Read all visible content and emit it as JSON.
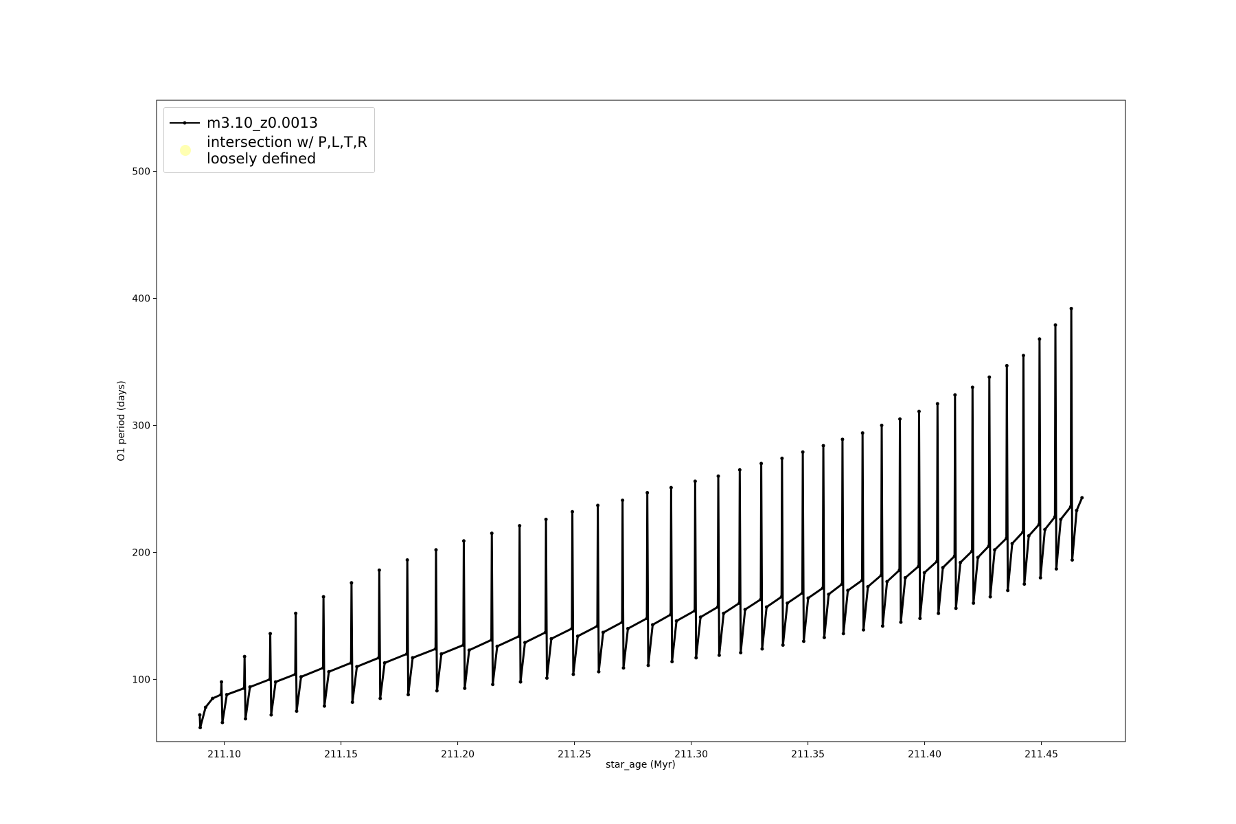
{
  "chart_data": {
    "type": "line",
    "xlabel": "star_age (Myr)",
    "ylabel": "O1 period (days)",
    "xlim": [
      211.071,
      211.486
    ],
    "ylim": [
      51,
      556
    ],
    "xticks": [
      {
        "value": 211.1,
        "label": "211.10"
      },
      211.15,
      {
        "value": 211.2,
        "label": "211.20"
      },
      211.25,
      {
        "value": 211.3,
        "label": "211.30"
      },
      211.35,
      {
        "value": 211.4,
        "label": "211.40"
      },
      211.45
    ],
    "yticks": [
      100,
      200,
      300,
      400,
      500
    ],
    "grid": false,
    "legend": "upper left",
    "series": [
      {
        "name": "m3.10_z0.0013",
        "color": "#000000",
        "marker": "dot",
        "x": [
          211.0895,
          211.0897,
          211.092,
          211.095,
          211.0986,
          211.0988,
          211.0992,
          211.1011,
          211.1085,
          211.1087,
          211.1091,
          211.111,
          211.1195,
          211.1197,
          211.1201,
          211.122,
          211.1304,
          211.1306,
          211.131,
          211.1329,
          211.1423,
          211.1425,
          211.1429,
          211.1448,
          211.1543,
          211.1545,
          211.1549,
          211.1568,
          211.1662,
          211.1664,
          211.1668,
          211.1687,
          211.1782,
          211.1784,
          211.1788,
          211.1807,
          211.1905,
          211.1907,
          211.1911,
          211.193,
          211.2024,
          211.2026,
          211.203,
          211.2049,
          211.2144,
          211.2146,
          211.215,
          211.2169,
          211.2263,
          211.2265,
          211.2269,
          211.2288,
          211.2376,
          211.2378,
          211.2382,
          211.2401,
          211.2489,
          211.2491,
          211.2495,
          211.2514,
          211.2598,
          211.26,
          211.2604,
          211.2623,
          211.2704,
          211.2706,
          211.271,
          211.2729,
          211.281,
          211.2812,
          211.2816,
          211.2835,
          211.2912,
          211.2914,
          211.2918,
          211.2937,
          211.3015,
          211.3017,
          211.3021,
          211.304,
          211.3114,
          211.3116,
          211.312,
          211.3139,
          211.3206,
          211.3208,
          211.3212,
          211.3231,
          211.3298,
          211.33,
          211.3304,
          211.3323,
          211.3387,
          211.3389,
          211.3393,
          211.3412,
          211.3476,
          211.3478,
          211.3482,
          211.3501,
          211.3564,
          211.3566,
          211.357,
          211.3589,
          211.3646,
          211.3648,
          211.3652,
          211.3671,
          211.3732,
          211.3734,
          211.3738,
          211.3757,
          211.3814,
          211.3816,
          211.382,
          211.3839,
          211.3892,
          211.3894,
          211.3898,
          211.3917,
          211.3974,
          211.3976,
          211.398,
          211.3999,
          211.4053,
          211.4055,
          211.4059,
          211.4078,
          211.4128,
          211.413,
          211.4134,
          211.4153,
          211.4203,
          211.4205,
          211.4209,
          211.4228,
          211.4275,
          211.4277,
          211.4281,
          211.43,
          211.435,
          211.4352,
          211.4356,
          211.4375,
          211.4421,
          211.4423,
          211.4427,
          211.4446,
          211.449,
          211.4492,
          211.4496,
          211.4515,
          211.4558,
          211.456,
          211.4564,
          211.4583,
          211.4626,
          211.4628,
          211.4632,
          211.4651,
          211.4674
        ],
        "values": [
          72,
          62,
          78,
          85,
          88,
          98,
          66,
          88,
          93,
          118,
          69,
          94,
          100,
          136,
          72,
          98,
          104,
          152,
          75,
          102,
          109,
          165,
          79,
          106,
          113,
          176,
          82,
          110,
          117,
          186,
          85,
          113,
          120,
          194,
          88,
          117,
          124,
          202,
          91,
          120,
          127,
          209,
          93,
          123,
          131,
          215,
          96,
          126,
          134,
          221,
          98,
          129,
          137,
          226,
          101,
          132,
          140,
          232,
          104,
          134,
          142,
          237,
          106,
          137,
          145,
          241,
          109,
          140,
          148,
          247,
          111,
          143,
          151,
          251,
          114,
          146,
          154,
          256,
          117,
          149,
          157,
          260,
          119,
          152,
          160,
          265,
          121,
          155,
          163,
          270,
          124,
          157,
          165,
          274,
          127,
          160,
          168,
          279,
          130,
          164,
          172,
          284,
          133,
          167,
          175,
          289,
          136,
          170,
          178,
          294,
          139,
          173,
          182,
          300,
          142,
          177,
          186,
          305,
          145,
          180,
          189,
          311,
          148,
          184,
          193,
          317,
          152,
          188,
          197,
          324,
          156,
          192,
          201,
          330,
          160,
          196,
          205,
          338,
          165,
          202,
          211,
          347,
          170,
          207,
          216,
          355,
          175,
          213,
          222,
          368,
          180,
          218,
          228,
          379,
          187,
          226,
          236,
          392,
          194,
          233,
          243
        ]
      },
      {
        "name": "intersection w/ P,L,T,R\nloosely defined",
        "color": "#ffffb2",
        "marker": "circle",
        "x": [],
        "values": []
      }
    ]
  }
}
